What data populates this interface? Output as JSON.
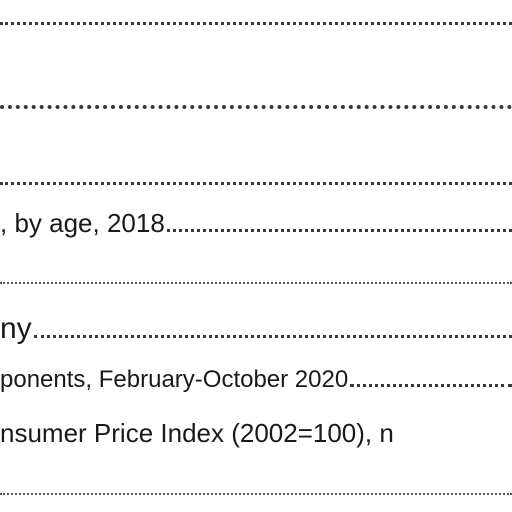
{
  "entries": [
    {
      "text": "",
      "kind": "leader"
    },
    {
      "text": "",
      "kind": "leader"
    },
    {
      "text": "",
      "kind": "leader"
    },
    {
      "text": ", by age, 2018",
      "kind": "entry"
    },
    {
      "text": "",
      "kind": "leader"
    },
    {
      "text": "ny",
      "kind": "entry"
    },
    {
      "text": "ponents, February-October 2020",
      "kind": "entry"
    },
    {
      "text": "nsumer Price Index (2002=100), n",
      "kind": "entry"
    },
    {
      "text": "",
      "kind": "leader"
    }
  ]
}
